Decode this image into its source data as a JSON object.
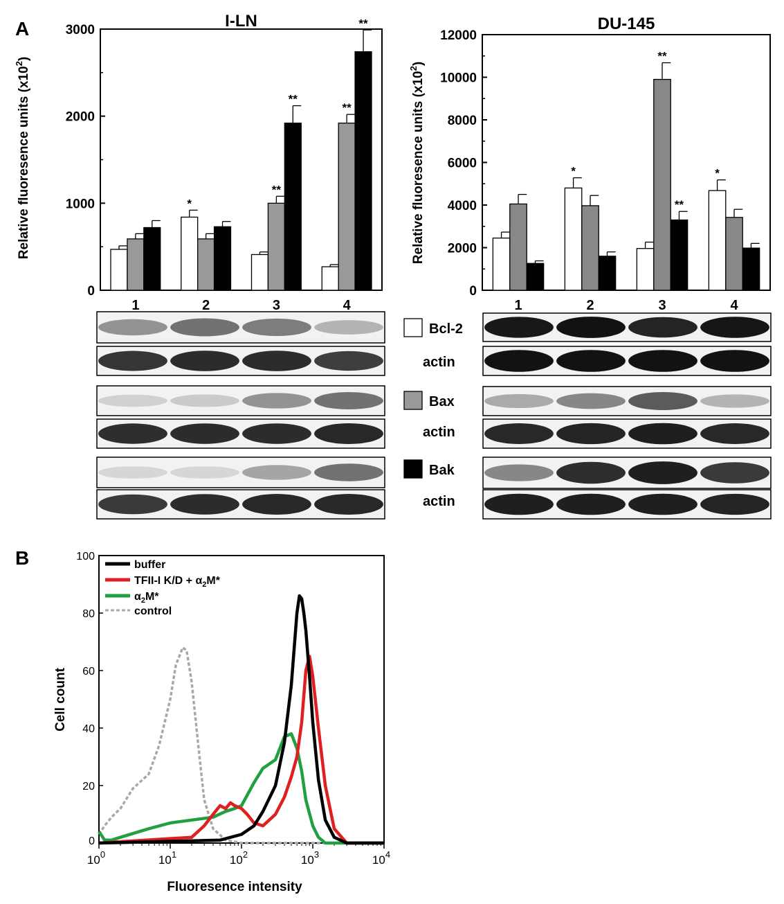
{
  "panel_labels": {
    "a": "A",
    "b": "B"
  },
  "chart_data": [
    {
      "id": "iln",
      "type": "bar",
      "title": "I-LN",
      "ylabel": "Relative fluoresence units (x10",
      "ylabel_sup": "2",
      "ylabel_end": ")",
      "ylim": [
        0,
        3000
      ],
      "yticks": [
        0,
        1000,
        2000,
        3000
      ],
      "categories": [
        "1",
        "2",
        "3",
        "4"
      ],
      "series": [
        {
          "name": "Bcl-2",
          "color": "#ffffff",
          "values": [
            470,
            840,
            410,
            270
          ],
          "errors": [
            40,
            80,
            30,
            25
          ],
          "sig": [
            "",
            "*",
            "",
            ""
          ]
        },
        {
          "name": "Bax",
          "color": "#999999",
          "values": [
            590,
            590,
            1000,
            1920
          ],
          "errors": [
            60,
            60,
            80,
            100
          ],
          "sig": [
            "",
            "",
            "**",
            "**"
          ]
        },
        {
          "name": "Bak",
          "color": "#000000",
          "values": [
            720,
            730,
            1920,
            2740
          ],
          "errors": [
            80,
            60,
            200,
            250
          ],
          "sig": [
            "",
            "",
            "**",
            "**"
          ]
        }
      ]
    },
    {
      "id": "du145",
      "type": "bar",
      "title": "DU-145",
      "ylabel": "Relative fluoresence units (x10",
      "ylabel_sup": "2",
      "ylabel_end": ")",
      "ylim": [
        0,
        12000
      ],
      "yticks": [
        0,
        2000,
        4000,
        6000,
        8000,
        10000,
        12000
      ],
      "categories": [
        "1",
        "2",
        "3",
        "4"
      ],
      "series": [
        {
          "name": "Bcl-2",
          "color": "#ffffff",
          "values": [
            2450,
            4800,
            1960,
            4680
          ],
          "errors": [
            280,
            480,
            300,
            500
          ],
          "sig": [
            "",
            "*",
            "",
            "*"
          ]
        },
        {
          "name": "Bax",
          "color": "#888888",
          "values": [
            4050,
            3970,
            9900,
            3420
          ],
          "errors": [
            450,
            480,
            780,
            380
          ],
          "sig": [
            "",
            "",
            "**",
            ""
          ]
        },
        {
          "name": "Bak",
          "color": "#000000",
          "values": [
            1260,
            1600,
            3300,
            1980
          ],
          "errors": [
            120,
            200,
            400,
            220
          ],
          "sig": [
            "",
            "",
            "**",
            ""
          ]
        }
      ]
    },
    {
      "id": "flow",
      "type": "line",
      "xlabel": "Fluoresence intensity",
      "ylabel": "Cell count",
      "xscale": "log",
      "xlim": [
        1,
        10000
      ],
      "ylim": [
        0,
        100
      ],
      "yticks": [
        0,
        20,
        40,
        60,
        80,
        100
      ],
      "xticks": [
        {
          "value": 1,
          "base": "10",
          "exp": "0"
        },
        {
          "value": 10,
          "base": "10",
          "exp": "1"
        },
        {
          "value": 100,
          "base": "10",
          "exp": "2"
        },
        {
          "value": 1000,
          "base": "10",
          "exp": "3"
        },
        {
          "value": 10000,
          "base": "10",
          "exp": "4"
        }
      ],
      "legend_position": "top-left",
      "series": [
        {
          "name": "buffer",
          "color": "#000000",
          "dash": "",
          "x": [
            1,
            50,
            100,
            150,
            200,
            300,
            400,
            500,
            600,
            650,
            700,
            750,
            800,
            900,
            1000,
            1200,
            1500,
            2000,
            3000,
            10000
          ],
          "y": [
            0,
            1,
            3,
            6,
            11,
            20,
            35,
            55,
            80,
            86,
            85,
            80,
            74,
            58,
            42,
            22,
            8,
            2,
            0,
            0
          ]
        },
        {
          "name": "TFII-I K/D + α₂M*",
          "label_main": "TFII-I K/D + α",
          "label_sub": "2",
          "label_end": "M*",
          "color": "#e02020",
          "dash": "",
          "x": [
            1,
            20,
            30,
            40,
            50,
            60,
            70,
            80,
            100,
            120,
            150,
            200,
            300,
            400,
            500,
            600,
            700,
            800,
            900,
            1000,
            1200,
            1500,
            2000,
            3000,
            10000
          ],
          "y": [
            0,
            2,
            6,
            10,
            13,
            12,
            14,
            13,
            12,
            10,
            7,
            6,
            10,
            16,
            23,
            30,
            42,
            60,
            65,
            58,
            40,
            20,
            5,
            0,
            0
          ]
        },
        {
          "name": "α₂M*",
          "label_main": "α",
          "label_sub": "2",
          "label_end": "M*",
          "color": "#20a040",
          "dash": "",
          "x": [
            1,
            1.2,
            1.5,
            2,
            5,
            10,
            20,
            40,
            60,
            80,
            100,
            150,
            200,
            300,
            400,
            500,
            600,
            700,
            800,
            1000,
            1200,
            1500,
            2000,
            3000,
            10000
          ],
          "y": [
            4,
            1,
            1,
            2,
            5,
            7,
            8,
            9,
            11,
            12,
            13,
            21,
            26,
            29,
            37,
            38,
            33,
            25,
            15,
            6,
            2,
            0,
            0,
            0,
            0
          ]
        },
        {
          "name": "control",
          "color": "#a8a8a8",
          "dash": "5,3",
          "x": [
            1,
            1.2,
            1.5,
            2,
            3,
            5,
            7,
            10,
            12,
            15,
            17,
            20,
            25,
            30,
            40,
            60,
            100,
            10000
          ],
          "y": [
            3,
            6,
            9,
            12,
            19,
            24,
            34,
            50,
            62,
            68,
            67,
            56,
            33,
            15,
            5,
            1,
            0,
            0
          ]
        }
      ]
    }
  ],
  "blots": {
    "labels": [
      {
        "key": "bcl2",
        "text": "Bcl-2",
        "swatch": "#ffffff"
      },
      {
        "key": "actin1",
        "text": "actin"
      },
      {
        "key": "bax",
        "text": "Bax",
        "swatch": "#999999"
      },
      {
        "key": "actin2",
        "text": "actin"
      },
      {
        "key": "bak",
        "text": "Bak",
        "swatch": "#000000"
      },
      {
        "key": "actin3",
        "text": "actin"
      }
    ],
    "iln": [
      [
        0.4,
        0.55,
        0.5,
        0.25
      ],
      [
        0.82,
        0.86,
        0.86,
        0.78
      ],
      [
        0.12,
        0.15,
        0.4,
        0.55
      ],
      [
        0.85,
        0.86,
        0.86,
        0.88
      ],
      [
        0.1,
        0.1,
        0.32,
        0.55
      ],
      [
        0.8,
        0.86,
        0.88,
        0.88
      ]
    ],
    "du145": [
      [
        0.95,
        0.98,
        0.9,
        0.96
      ],
      [
        0.98,
        0.98,
        0.98,
        0.98
      ],
      [
        0.3,
        0.45,
        0.65,
        0.25
      ],
      [
        0.88,
        0.9,
        0.92,
        0.88
      ],
      [
        0.45,
        0.85,
        0.92,
        0.8
      ],
      [
        0.92,
        0.92,
        0.92,
        0.9
      ]
    ]
  }
}
